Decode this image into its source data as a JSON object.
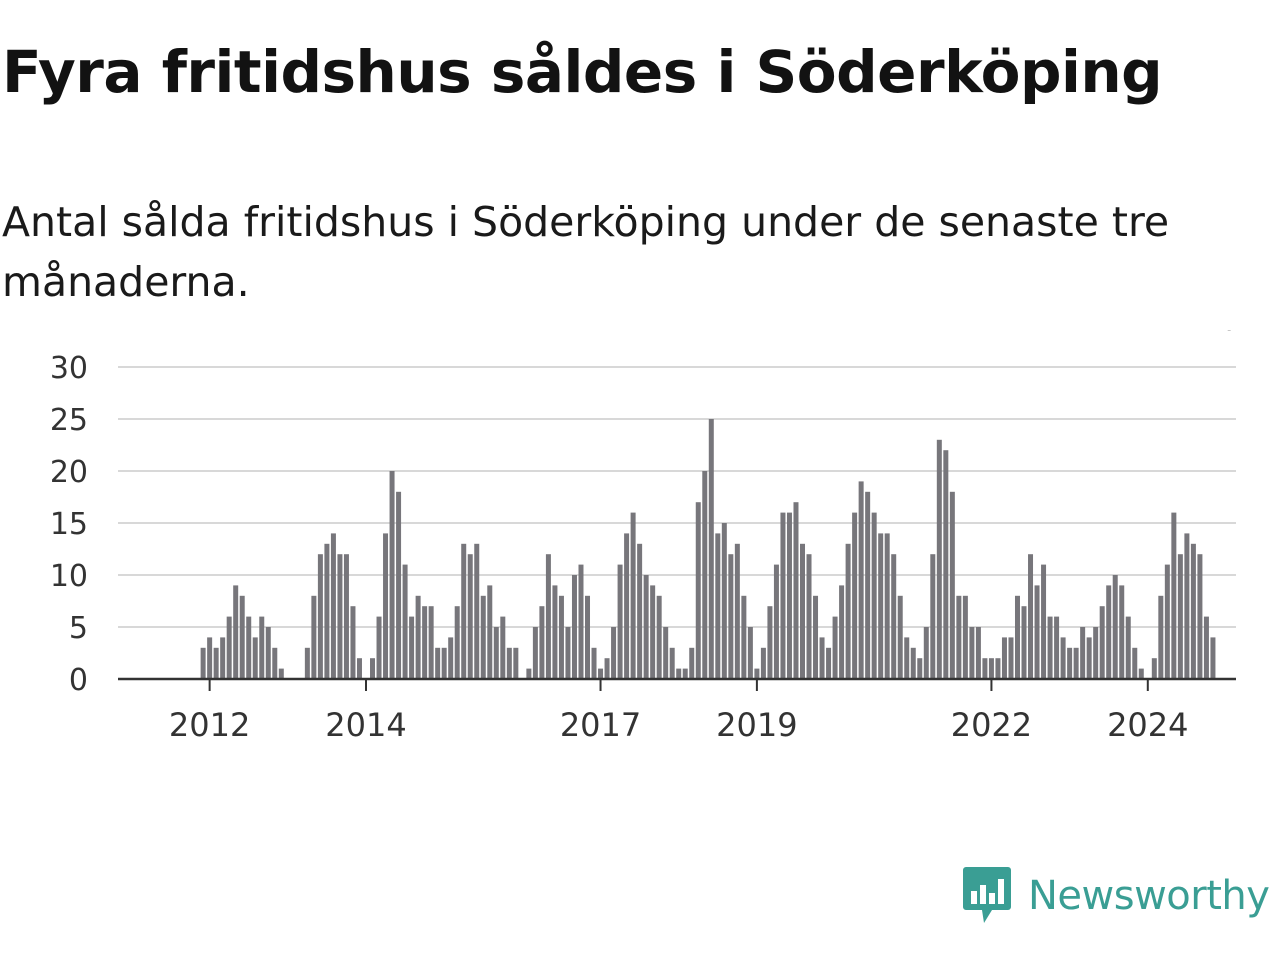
{
  "header": {
    "title": "Fyra fritidshus såldes i Söderköping",
    "subtitle": "Antal sålda fritidshus i Söderköping under de senaste tre månaderna."
  },
  "brand": {
    "name": "Newsworthy",
    "color": "#3a9e94",
    "icon": "newsworthy-logo-icon"
  },
  "chart_data": {
    "type": "bar",
    "title": "Fyra fritidshus såldes i Söderköping",
    "ylim": [
      0,
      30
    ],
    "yticks": [
      "0",
      "5",
      "10",
      "15",
      "20",
      "25",
      "30"
    ],
    "xticks": [
      {
        "label": "2012",
        "index": 9
      },
      {
        "label": "2014",
        "index": 33
      },
      {
        "label": "2017",
        "index": 69
      },
      {
        "label": "2019",
        "index": 93
      },
      {
        "label": "2022",
        "index": 129
      },
      {
        "label": "2024",
        "index": 153
      }
    ],
    "grid": true,
    "bar_color": "#77767b",
    "highlight_color": "#2aa198",
    "highlight_index": 165,
    "highlight_label": "4",
    "values": [
      0,
      0,
      0,
      0,
      0,
      0,
      0,
      0,
      3,
      4,
      3,
      4,
      6,
      9,
      8,
      6,
      4,
      6,
      5,
      3,
      1,
      0,
      0,
      0,
      3,
      8,
      12,
      13,
      14,
      12,
      12,
      7,
      2,
      0,
      2,
      6,
      14,
      20,
      18,
      11,
      6,
      8,
      7,
      7,
      3,
      3,
      4,
      7,
      13,
      12,
      13,
      8,
      9,
      5,
      6,
      3,
      3,
      0,
      1,
      5,
      7,
      12,
      9,
      8,
      5,
      10,
      11,
      8,
      3,
      1,
      2,
      5,
      11,
      14,
      16,
      13,
      10,
      9,
      8,
      5,
      3,
      1,
      1,
      3,
      17,
      20,
      25,
      14,
      15,
      12,
      13,
      8,
      5,
      1,
      3,
      7,
      11,
      16,
      16,
      17,
      13,
      12,
      8,
      4,
      3,
      6,
      9,
      13,
      16,
      19,
      18,
      16,
      14,
      14,
      12,
      8,
      4,
      3,
      2,
      5,
      12,
      23,
      22,
      18,
      8,
      8,
      5,
      5,
      2,
      2,
      2,
      4,
      4,
      8,
      7,
      12,
      9,
      11,
      6,
      6,
      4,
      3,
      3,
      5,
      4,
      5,
      7,
      9,
      10,
      9,
      6,
      3,
      1,
      0,
      2,
      8,
      11,
      16,
      12,
      14,
      13,
      12,
      6,
      4
    ]
  }
}
